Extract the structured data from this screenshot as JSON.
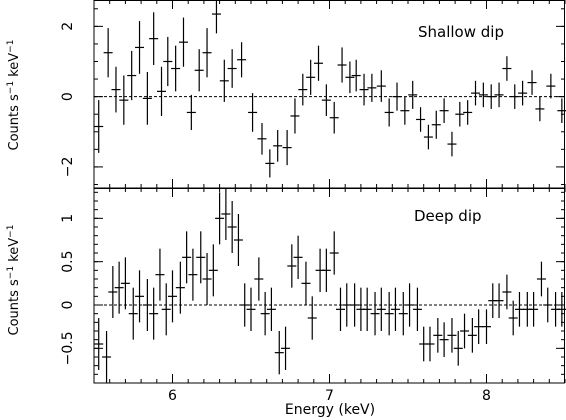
{
  "figure": {
    "xlabel": "Energy (keV)",
    "ylabel_main": "Counts s",
    "ylabel_sup1": "−1",
    "ylabel_mid": " keV",
    "ylabel_sup2": "−1"
  },
  "chart_data": [
    {
      "type": "scatter",
      "title": "Shallow dip",
      "xlabel": "Energy (keV)",
      "ylabel": "Counts s−1 keV−1",
      "xlim": [
        5.5,
        8.5
      ],
      "ylim": [
        -2.6,
        2.75
      ],
      "xticks": [
        6,
        7,
        8
      ],
      "xtick_labels": [
        "6",
        "7",
        "8"
      ],
      "yticks": [
        -2,
        0,
        2
      ],
      "ytick_labels": [
        "−2",
        "0",
        "2"
      ],
      "reference_line": 0,
      "grid": false,
      "points": [
        {
          "x": 5.53,
          "y": -0.85,
          "err": 0.75
        },
        {
          "x": 5.59,
          "y": 1.25,
          "err": 0.7
        },
        {
          "x": 5.64,
          "y": 0.2,
          "err": 0.65
        },
        {
          "x": 5.69,
          "y": -0.1,
          "err": 0.7
        },
        {
          "x": 5.74,
          "y": 0.6,
          "err": 0.7
        },
        {
          "x": 5.79,
          "y": 1.4,
          "err": 0.75
        },
        {
          "x": 5.84,
          "y": -0.05,
          "err": 0.75
        },
        {
          "x": 5.88,
          "y": 1.65,
          "err": 0.75
        },
        {
          "x": 5.93,
          "y": 0.15,
          "err": 0.7
        },
        {
          "x": 5.97,
          "y": 1.0,
          "err": 0.7
        },
        {
          "x": 6.02,
          "y": 0.8,
          "err": 0.65
        },
        {
          "x": 6.07,
          "y": 1.55,
          "err": 0.7
        },
        {
          "x": 6.12,
          "y": -0.45,
          "err": 0.5
        },
        {
          "x": 6.17,
          "y": 0.75,
          "err": 0.6
        },
        {
          "x": 6.22,
          "y": 1.25,
          "err": 0.7
        },
        {
          "x": 6.28,
          "y": 2.35,
          "err": 0.55
        },
        {
          "x": 6.33,
          "y": 0.45,
          "err": 0.6
        },
        {
          "x": 6.38,
          "y": 0.8,
          "err": 0.55
        },
        {
          "x": 6.44,
          "y": 1.05,
          "err": 0.5
        },
        {
          "x": 6.51,
          "y": -0.45,
          "err": 0.55
        },
        {
          "x": 6.57,
          "y": -1.2,
          "err": 0.45
        },
        {
          "x": 6.62,
          "y": -1.9,
          "err": 0.4
        },
        {
          "x": 6.67,
          "y": -1.4,
          "err": 0.45
        },
        {
          "x": 6.73,
          "y": -1.45,
          "err": 0.5
        },
        {
          "x": 6.78,
          "y": -0.55,
          "err": 0.5
        },
        {
          "x": 6.83,
          "y": 0.2,
          "err": 0.45
        },
        {
          "x": 6.88,
          "y": 0.55,
          "err": 0.5
        },
        {
          "x": 6.93,
          "y": 0.95,
          "err": 0.5
        },
        {
          "x": 6.98,
          "y": -0.1,
          "err": 0.45
        },
        {
          "x": 7.03,
          "y": -0.6,
          "err": 0.45
        },
        {
          "x": 7.08,
          "y": 0.9,
          "err": 0.5
        },
        {
          "x": 7.13,
          "y": 0.55,
          "err": 0.45
        },
        {
          "x": 7.17,
          "y": 0.6,
          "err": 0.45
        },
        {
          "x": 7.22,
          "y": 0.2,
          "err": 0.45
        },
        {
          "x": 7.27,
          "y": 0.25,
          "err": 0.4
        },
        {
          "x": 7.33,
          "y": 0.3,
          "err": 0.45
        },
        {
          "x": 7.38,
          "y": -0.45,
          "err": 0.4
        },
        {
          "x": 7.43,
          "y": 0.0,
          "err": 0.4
        },
        {
          "x": 7.48,
          "y": -0.4,
          "err": 0.4
        },
        {
          "x": 7.53,
          "y": 0.05,
          "err": 0.4
        },
        {
          "x": 7.58,
          "y": -0.65,
          "err": 0.35
        },
        {
          "x": 7.63,
          "y": -1.15,
          "err": 0.35
        },
        {
          "x": 7.68,
          "y": -0.8,
          "err": 0.4
        },
        {
          "x": 7.73,
          "y": -0.4,
          "err": 0.35
        },
        {
          "x": 7.78,
          "y": -1.35,
          "err": 0.35
        },
        {
          "x": 7.83,
          "y": -0.5,
          "err": 0.35
        },
        {
          "x": 7.88,
          "y": -0.45,
          "err": 0.35
        },
        {
          "x": 7.93,
          "y": 0.1,
          "err": 0.35
        },
        {
          "x": 7.98,
          "y": 0.05,
          "err": 0.35
        },
        {
          "x": 8.03,
          "y": -0.0,
          "err": 0.35
        },
        {
          "x": 8.08,
          "y": 0.05,
          "err": 0.35
        },
        {
          "x": 8.13,
          "y": 0.8,
          "err": 0.35
        },
        {
          "x": 8.18,
          "y": 0.0,
          "err": 0.35
        },
        {
          "x": 8.23,
          "y": 0.1,
          "err": 0.35
        },
        {
          "x": 8.29,
          "y": 0.4,
          "err": 0.35
        },
        {
          "x": 8.34,
          "y": -0.35,
          "err": 0.35
        },
        {
          "x": 8.41,
          "y": 0.3,
          "err": 0.35
        },
        {
          "x": 8.48,
          "y": -0.4,
          "err": 0.35
        }
      ]
    },
    {
      "type": "scatter",
      "title": "Deep dip",
      "xlabel": "Energy (keV)",
      "ylabel": "Counts s−1 keV−1",
      "xlim": [
        5.5,
        8.5
      ],
      "ylim": [
        -0.9,
        1.35
      ],
      "xticks": [
        6,
        7,
        8
      ],
      "xtick_labels": [
        "6",
        "7",
        "8"
      ],
      "yticks": [
        -0.5,
        0,
        0.5,
        1
      ],
      "ytick_labels": [
        "−0.5",
        "0",
        "0.5",
        "1"
      ],
      "reference_line": 0,
      "grid": false,
      "points": [
        {
          "x": 5.53,
          "y": -0.45,
          "err": 0.3
        },
        {
          "x": 5.58,
          "y": -0.6,
          "err": 0.3
        },
        {
          "x": 5.62,
          "y": 0.15,
          "err": 0.3
        },
        {
          "x": 5.66,
          "y": 0.2,
          "err": 0.3
        },
        {
          "x": 5.7,
          "y": 0.25,
          "err": 0.3
        },
        {
          "x": 5.75,
          "y": -0.1,
          "err": 0.3
        },
        {
          "x": 5.79,
          "y": 0.1,
          "err": 0.3
        },
        {
          "x": 5.84,
          "y": 0.0,
          "err": 0.3
        },
        {
          "x": 5.88,
          "y": -0.1,
          "err": 0.3
        },
        {
          "x": 5.92,
          "y": 0.35,
          "err": 0.3
        },
        {
          "x": 5.96,
          "y": -0.05,
          "err": 0.3
        },
        {
          "x": 6.0,
          "y": 0.1,
          "err": 0.3
        },
        {
          "x": 6.05,
          "y": 0.2,
          "err": 0.3
        },
        {
          "x": 6.09,
          "y": 0.55,
          "err": 0.3
        },
        {
          "x": 6.13,
          "y": 0.35,
          "err": 0.3
        },
        {
          "x": 6.18,
          "y": 0.55,
          "err": 0.3
        },
        {
          "x": 6.22,
          "y": 0.3,
          "err": 0.3
        },
        {
          "x": 6.26,
          "y": 0.4,
          "err": 0.3
        },
        {
          "x": 6.3,
          "y": 1.0,
          "err": 0.3
        },
        {
          "x": 6.34,
          "y": 1.05,
          "err": 0.3
        },
        {
          "x": 6.38,
          "y": 0.9,
          "err": 0.3
        },
        {
          "x": 6.42,
          "y": 0.75,
          "err": 0.3
        },
        {
          "x": 6.46,
          "y": 0.0,
          "err": 0.25
        },
        {
          "x": 6.5,
          "y": -0.05,
          "err": 0.25
        },
        {
          "x": 6.55,
          "y": 0.3,
          "err": 0.25
        },
        {
          "x": 6.59,
          "y": -0.1,
          "err": 0.25
        },
        {
          "x": 6.63,
          "y": -0.05,
          "err": 0.25
        },
        {
          "x": 6.68,
          "y": -0.55,
          "err": 0.25
        },
        {
          "x": 6.72,
          "y": -0.5,
          "err": 0.25
        },
        {
          "x": 6.76,
          "y": 0.45,
          "err": 0.25
        },
        {
          "x": 6.8,
          "y": 0.55,
          "err": 0.25
        },
        {
          "x": 6.85,
          "y": 0.25,
          "err": 0.25
        },
        {
          "x": 6.89,
          "y": -0.15,
          "err": 0.25
        },
        {
          "x": 6.94,
          "y": 0.4,
          "err": 0.25
        },
        {
          "x": 6.98,
          "y": 0.4,
          "err": 0.25
        },
        {
          "x": 7.03,
          "y": 0.6,
          "err": 0.25
        },
        {
          "x": 7.07,
          "y": -0.05,
          "err": 0.25
        },
        {
          "x": 7.11,
          "y": 0.0,
          "err": 0.25
        },
        {
          "x": 7.16,
          "y": 0.0,
          "err": 0.25
        },
        {
          "x": 7.2,
          "y": -0.05,
          "err": 0.25
        },
        {
          "x": 7.24,
          "y": -0.05,
          "err": 0.25
        },
        {
          "x": 7.29,
          "y": -0.1,
          "err": 0.25
        },
        {
          "x": 7.33,
          "y": -0.05,
          "err": 0.25
        },
        {
          "x": 7.38,
          "y": -0.1,
          "err": 0.25
        },
        {
          "x": 7.42,
          "y": -0.05,
          "err": 0.25
        },
        {
          "x": 7.47,
          "y": -0.1,
          "err": 0.25
        },
        {
          "x": 7.51,
          "y": 0.0,
          "err": 0.25
        },
        {
          "x": 7.56,
          "y": -0.05,
          "err": 0.25
        },
        {
          "x": 7.6,
          "y": -0.45,
          "err": 0.2
        },
        {
          "x": 7.64,
          "y": -0.45,
          "err": 0.2
        },
        {
          "x": 7.69,
          "y": -0.35,
          "err": 0.2
        },
        {
          "x": 7.73,
          "y": -0.4,
          "err": 0.2
        },
        {
          "x": 7.78,
          "y": -0.35,
          "err": 0.2
        },
        {
          "x": 7.82,
          "y": -0.5,
          "err": 0.2
        },
        {
          "x": 7.86,
          "y": -0.3,
          "err": 0.2
        },
        {
          "x": 7.91,
          "y": -0.35,
          "err": 0.2
        },
        {
          "x": 7.95,
          "y": -0.25,
          "err": 0.2
        },
        {
          "x": 8.0,
          "y": -0.25,
          "err": 0.2
        },
        {
          "x": 8.04,
          "y": 0.05,
          "err": 0.2
        },
        {
          "x": 8.08,
          "y": 0.05,
          "err": 0.2
        },
        {
          "x": 8.13,
          "y": 0.15,
          "err": 0.2
        },
        {
          "x": 8.17,
          "y": -0.15,
          "err": 0.2
        },
        {
          "x": 8.21,
          "y": -0.05,
          "err": 0.2
        },
        {
          "x": 8.26,
          "y": -0.05,
          "err": 0.2
        },
        {
          "x": 8.3,
          "y": -0.05,
          "err": 0.2
        },
        {
          "x": 8.35,
          "y": 0.3,
          "err": 0.2
        },
        {
          "x": 8.39,
          "y": 0.0,
          "err": 0.2
        },
        {
          "x": 8.44,
          "y": -0.05,
          "err": 0.2
        },
        {
          "x": 8.48,
          "y": -0.05,
          "err": 0.2
        }
      ]
    }
  ]
}
